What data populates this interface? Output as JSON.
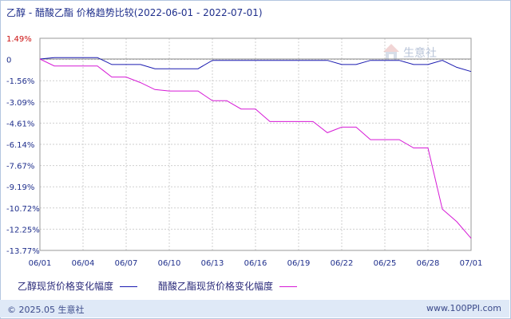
{
  "title": "乙醇 - 醋酸乙酯 价格趋势比较(2022-06-01 - 2022-07-01)",
  "colors": {
    "series1": "#1a1ab0",
    "series2": "#d61ad6",
    "grid": "#cfcfcf",
    "top_tick": "#cc1111",
    "tick": "#1f2f8c"
  },
  "legend": {
    "series1_label": "乙醇现货价格变化幅度",
    "series2_label": "醋酸乙酯现货价格变化幅度"
  },
  "watermark": "生意社",
  "footer": {
    "copyright": "© 2025.05 生意社",
    "site": "www.100PPI.com"
  },
  "chart_data": {
    "type": "line",
    "xlabel": "",
    "ylabel": "",
    "x_range": [
      "2022-06-01",
      "2022-07-01"
    ],
    "x_ticks": [
      "06/01",
      "06/04",
      "06/07",
      "06/10",
      "06/13",
      "06/16",
      "06/19",
      "06/22",
      "06/25",
      "06/28",
      "07/01"
    ],
    "y_ticks": [
      "1.49%",
      "0",
      "-1.56%",
      "-3.09%",
      "-4.61%",
      "-6.14%",
      "-7.67%",
      "-9.19%",
      "-10.72%",
      "-12.25%",
      "-13.77%"
    ],
    "ylim": [
      -13.77,
      1.49
    ],
    "grid": true,
    "legend_position": "bottom",
    "series": [
      {
        "name": "乙醇现货价格变化幅度",
        "color": "#1a1ab0",
        "points": [
          [
            "2022-06-01",
            0
          ],
          [
            "2022-06-02",
            0.1
          ],
          [
            "2022-06-05",
            0.1
          ],
          [
            "2022-06-06",
            -0.4
          ],
          [
            "2022-06-08",
            -0.4
          ],
          [
            "2022-06-09",
            -0.7
          ],
          [
            "2022-06-12",
            -0.7
          ],
          [
            "2022-06-13",
            -0.1
          ],
          [
            "2022-06-21",
            -0.1
          ],
          [
            "2022-06-22",
            -0.4
          ],
          [
            "2022-06-23",
            -0.4
          ],
          [
            "2022-06-24",
            -0.1
          ],
          [
            "2022-06-26",
            -0.1
          ],
          [
            "2022-06-27",
            -0.4
          ],
          [
            "2022-06-28",
            -0.4
          ],
          [
            "2022-06-29",
            -0.1
          ],
          [
            "2022-06-30",
            -0.6
          ],
          [
            "2022-07-01",
            -0.9
          ]
        ]
      },
      {
        "name": "醋酸乙酯现货价格变化幅度",
        "color": "#d61ad6",
        "points": [
          [
            "2022-06-01",
            0
          ],
          [
            "2022-06-02",
            -0.5
          ],
          [
            "2022-06-05",
            -0.5
          ],
          [
            "2022-06-06",
            -1.3
          ],
          [
            "2022-06-07",
            -1.3
          ],
          [
            "2022-06-08",
            -1.7
          ],
          [
            "2022-06-09",
            -2.2
          ],
          [
            "2022-06-10",
            -2.3
          ],
          [
            "2022-06-12",
            -2.3
          ],
          [
            "2022-06-13",
            -3.0
          ],
          [
            "2022-06-14",
            -3.0
          ],
          [
            "2022-06-15",
            -3.6
          ],
          [
            "2022-06-16",
            -3.6
          ],
          [
            "2022-06-17",
            -4.5
          ],
          [
            "2022-06-20",
            -4.5
          ],
          [
            "2022-06-21",
            -5.3
          ],
          [
            "2022-06-22",
            -4.9
          ],
          [
            "2022-06-23",
            -4.9
          ],
          [
            "2022-06-24",
            -5.8
          ],
          [
            "2022-06-26",
            -5.8
          ],
          [
            "2022-06-27",
            -6.4
          ],
          [
            "2022-06-28",
            -6.4
          ],
          [
            "2022-06-29",
            -10.8
          ],
          [
            "2022-06-30",
            -11.7
          ],
          [
            "2022-07-01",
            -12.9
          ]
        ]
      }
    ]
  }
}
